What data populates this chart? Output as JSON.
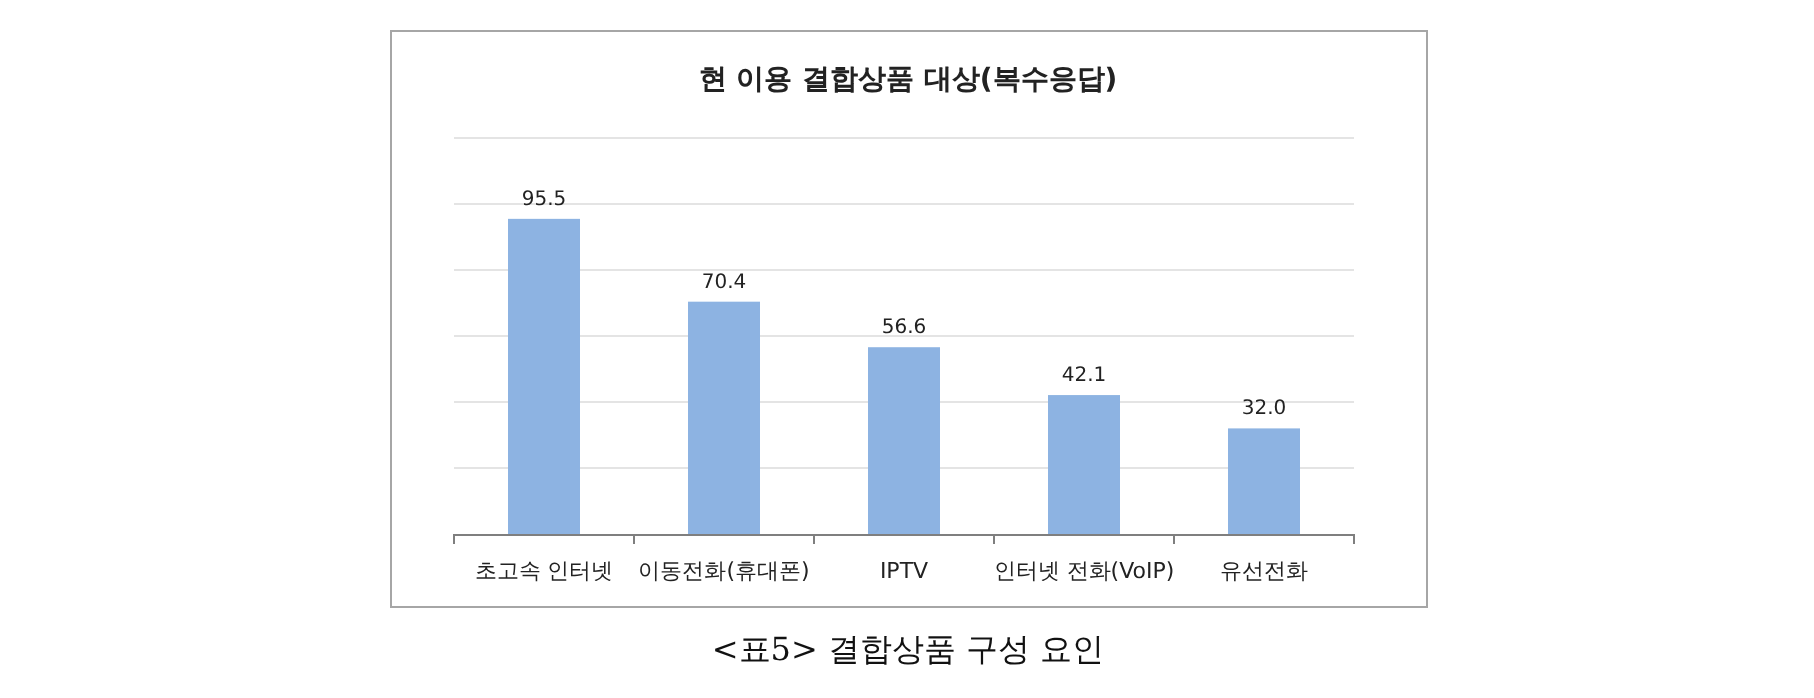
{
  "chart_data": {
    "type": "bar",
    "title": "현 이용 결합상품 대상(복수응답)",
    "categories": [
      "초고속 인터넷",
      "이동전화(휴대폰)",
      "IPTV",
      "인터넷 전화(VoIP)",
      "유선전화"
    ],
    "values": [
      95.5,
      70.4,
      56.6,
      42.1,
      32.0
    ],
    "value_labels": [
      "95.5",
      "70.4",
      "56.6",
      "42.1",
      "32.0"
    ],
    "color": "#8db3e2",
    "ylim": [
      0,
      120
    ],
    "yticks": [
      {
        "value": 0,
        "label": null
      },
      {
        "value": 20,
        "label": null
      },
      {
        "value": 40,
        "label": null
      },
      {
        "value": 60,
        "label": null
      },
      {
        "value": 80,
        "label": null
      },
      {
        "value": 100,
        "label": null
      },
      {
        "value": 120,
        "label": null
      }
    ],
    "tick_labels": "x",
    "grid": "y",
    "annotations": [
      "<표5> 결합상품 구성 요인"
    ]
  }
}
